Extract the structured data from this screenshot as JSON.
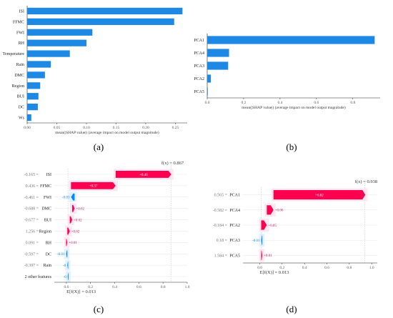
{
  "colors": {
    "bar": "#1e88e5",
    "positive": "#ff0051",
    "positive_dark": "#c4165e",
    "negative": "#008bfb",
    "axis": "#000000",
    "text": "#333333"
  },
  "panels": {
    "a": "(a)",
    "b": "(b)",
    "c": "(c)",
    "d": "(d)"
  },
  "chart_data": [
    {
      "id": "a",
      "type": "bar",
      "orientation": "horizontal",
      "categories": [
        "ISI",
        "FFMC",
        "FWI",
        "RH",
        "Temperature",
        "Rain",
        "DMC",
        "Region",
        "BUI",
        "DC",
        "Ws"
      ],
      "values": [
        0.262,
        0.248,
        0.11,
        0.1,
        0.072,
        0.04,
        0.03,
        0.022,
        0.019,
        0.018,
        0.007
      ],
      "xlabel": "mean(|SHAP value|) (average impact on model output magnitude)",
      "ylabel": "",
      "xlim": [
        0,
        0.27
      ],
      "xticks": [
        "0.00",
        "0.05",
        "0.10",
        "0.15",
        "0.20",
        "0.25"
      ],
      "xtick_values": [
        0,
        0.05,
        0.1,
        0.15,
        0.2,
        0.25
      ]
    },
    {
      "id": "b",
      "type": "bar",
      "orientation": "horizontal",
      "categories": [
        "PCA1",
        "PCA4",
        "PCA3",
        "PCA2",
        "PCA5"
      ],
      "values": [
        0.92,
        0.12,
        0.115,
        0.02,
        0.003
      ],
      "xlabel": "mean(|SHAP value|) (average impact on model output magnitude)",
      "ylabel": "",
      "xlim": [
        0,
        0.95
      ],
      "xticks": [
        "0.0",
        "0.2",
        "0.4",
        "0.6",
        "0.8"
      ],
      "xtick_values": [
        0,
        0.2,
        0.4,
        0.6,
        0.8
      ]
    },
    {
      "id": "c",
      "type": "waterfall",
      "features": [
        {
          "value": "-0.165",
          "name": "ISI",
          "contribution": 0.46,
          "label": "+0.46"
        },
        {
          "value": "0.436",
          "name": "FFMC",
          "contribution": 0.37,
          "label": "+0.37"
        },
        {
          "value": "-0.461",
          "name": "FWI",
          "contribution": -0.03,
          "label": "-0.03"
        },
        {
          "value": "-0.688",
          "name": "DMC",
          "contribution": 0.02,
          "label": "+0.02"
        },
        {
          "value": "-0.677",
          "name": "BUI",
          "contribution": 0.02,
          "label": "+0.02"
        },
        {
          "value": "1.256",
          "name": "Region",
          "contribution": 0.02,
          "label": "+0.02"
        },
        {
          "value": "0.091",
          "name": "RH",
          "contribution": 0.01,
          "label": "+0.01"
        },
        {
          "value": "-0.597",
          "name": "DC",
          "contribution": -0.01,
          "label": "-0.01"
        },
        {
          "value": "-0.397",
          "name": "Rain",
          "contribution": -0.003,
          "label": "-0"
        },
        {
          "value": "",
          "name": "2 other features",
          "contribution": -0.002,
          "label": "-0"
        }
      ],
      "base_value": 0.013,
      "base_label": "E[f(X)] = 0.013",
      "fx_value": 0.867,
      "fx_label": "f(x) = 0.867",
      "xlim": [
        -0.1,
        1.0
      ],
      "xticks": [
        "0.0",
        "0.2",
        "0.4",
        "0.6",
        "0.8",
        "1.0"
      ],
      "xtick_values": [
        0,
        0.2,
        0.4,
        0.6,
        0.8,
        1.0
      ]
    },
    {
      "id": "d",
      "type": "waterfall",
      "features": [
        {
          "value": "0.565",
          "name": "PCA1",
          "contribution": 0.82,
          "label": "+0.82"
        },
        {
          "value": "-0.582",
          "name": "PCA4",
          "contribution": 0.06,
          "label": "+0.06"
        },
        {
          "value": "-0.184",
          "name": "PCA2",
          "contribution": 0.05,
          "label": "+0.05"
        },
        {
          "value": "0.18",
          "name": "PCA3",
          "contribution": -0.01,
          "label": "-0.01"
        },
        {
          "value": "1.584",
          "name": "PCA5",
          "contribution": 0.01,
          "label": "+0.01"
        }
      ],
      "base_value": 0.013,
      "base_label": "E[f(X)] = 0.013",
      "fx_value": 0.938,
      "fx_label": "f(x) = 0.938",
      "xlim": [
        -0.15,
        1.05
      ],
      "xticks": [
        "0.0",
        "0.2",
        "0.4",
        "0.6",
        "0.8",
        "1.0"
      ],
      "xtick_values": [
        0,
        0.2,
        0.4,
        0.6,
        0.8,
        1.0
      ]
    }
  ]
}
